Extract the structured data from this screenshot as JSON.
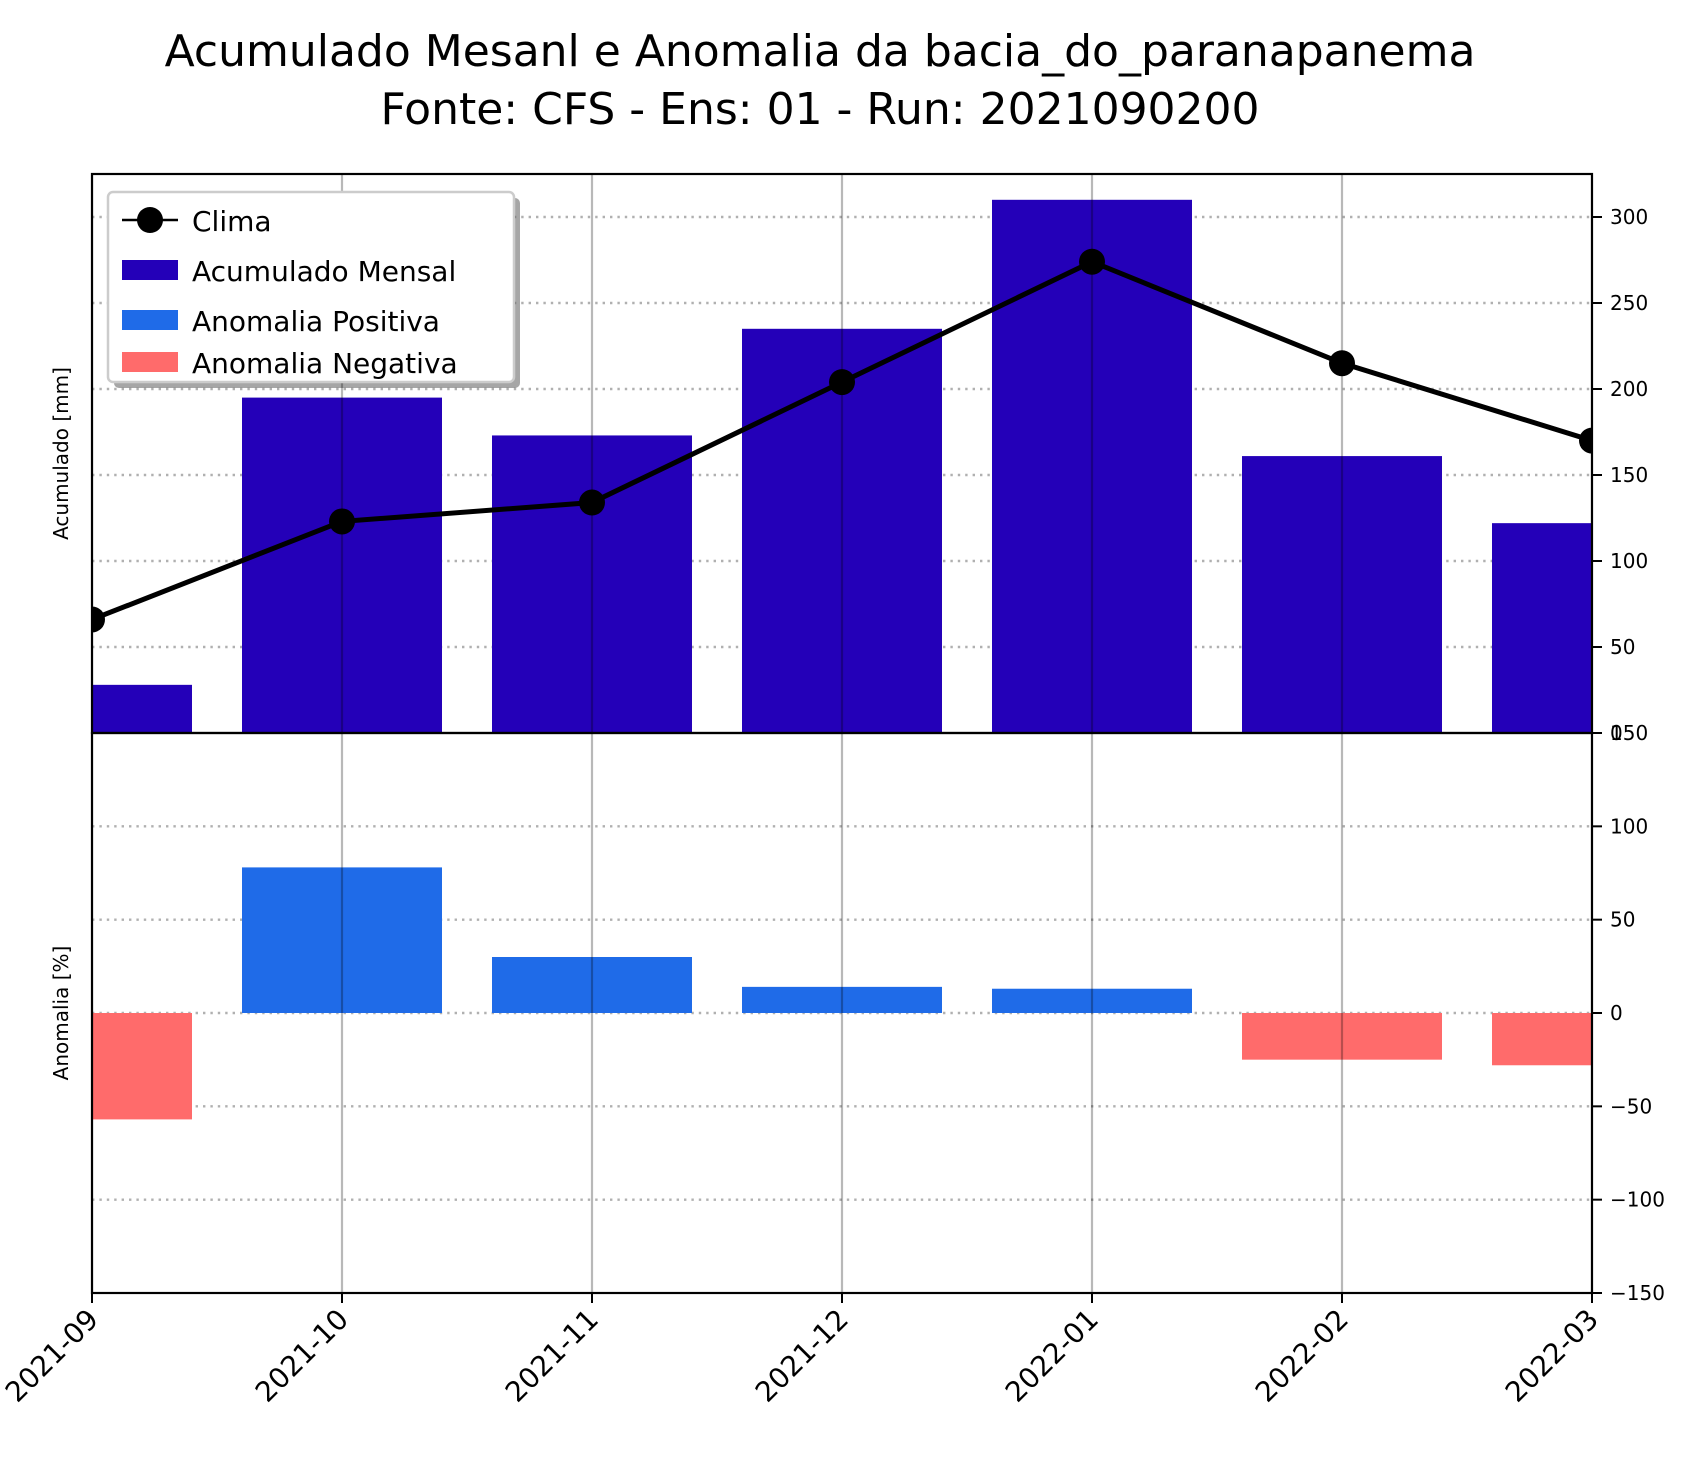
{
  "title_line1": "Acumulado Mesanl e Anomalia da bacia_do_paranapanema",
  "title_line2": "Fonte: CFS - Ens: 01 - Run: 2021090200",
  "chart_data": [
    {
      "type": "bar",
      "ylabel": "Acumulado [mm]",
      "ylim": [
        0,
        325
      ],
      "yticks": [
        0,
        50,
        100,
        150,
        200,
        250,
        300
      ],
      "grid": "horizontal dotted",
      "legend_position": "top-left",
      "categories": [
        "2021-09",
        "2021-10",
        "2021-11",
        "2021-12",
        "2022-01",
        "2022-02",
        "2022-03"
      ],
      "series": [
        {
          "name": "Clima",
          "kind": "line",
          "color": "#000000",
          "values": [
            66,
            123,
            134,
            204,
            274,
            215,
            170
          ]
        },
        {
          "name": "Acumulado Mensal",
          "kind": "bar",
          "color": "#2400b8",
          "values": [
            28,
            195,
            173,
            235,
            310,
            161,
            122
          ]
        }
      ]
    },
    {
      "type": "bar",
      "ylabel": "Anomalia [%]",
      "ylim": [
        -150,
        150
      ],
      "yticks": [
        -150,
        -100,
        -50,
        0,
        50,
        100,
        150
      ],
      "grid": "horizontal dotted",
      "categories": [
        "2021-09",
        "2021-10",
        "2021-11",
        "2021-12",
        "2022-01",
        "2022-02",
        "2022-03"
      ],
      "series": [
        {
          "name": "Anomalia Positiva",
          "kind": "bar",
          "color": "#1f6be8",
          "values": [
            0,
            78,
            30,
            14,
            13,
            0,
            0
          ]
        },
        {
          "name": "Anomalia Negativa",
          "kind": "bar",
          "color": "#ff6b6b",
          "values": [
            -57,
            0,
            0,
            0,
            0,
            -25,
            -28
          ]
        }
      ]
    }
  ]
}
